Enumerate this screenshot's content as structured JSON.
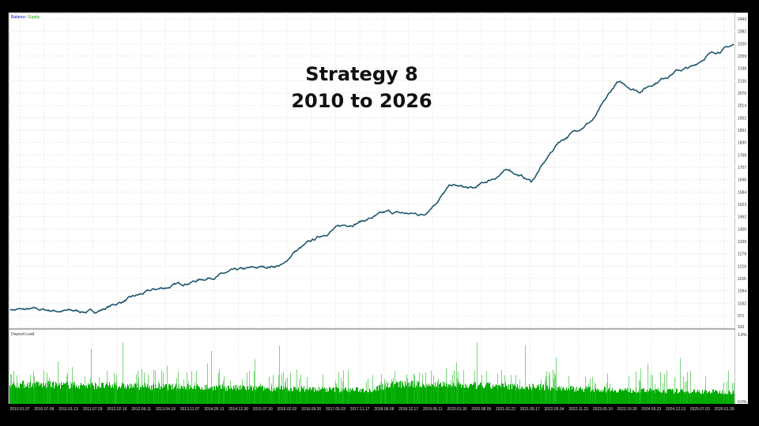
{
  "overlay": {
    "line1": "Strategy 8",
    "line2": "2010 to 2026"
  },
  "chart_data": [
    {
      "type": "line",
      "legend": {
        "items": [
          {
            "name": "Balance",
            "color": "#0000c0"
          },
          {
            "name": "Equity",
            "color": "#00b000"
          }
        ],
        "separator": " / ",
        "placement": "top-left"
      },
      "y_ticks": [
        2443,
        2382,
        2320,
        2259,
        2198,
        2136,
        2075,
        2014,
        1952,
        1891,
        1830,
        1768,
        1707,
        1646,
        1584,
        1523,
        1462,
        1400,
        1339,
        1278,
        1216,
        1155,
        1094,
        1032,
        971,
        910
      ],
      "ylim": [
        910,
        2443
      ],
      "x_ticks": [
        "2010.01.07",
        "2010.07.08",
        "2011.01.13",
        "2011.07.29",
        "2012.02.16",
        "2012.09.11",
        "2013.04.18",
        "2013.11.07",
        "2014.05.13",
        "2014.12.30",
        "2015.07.30",
        "2016.02.02",
        "2016.09.20",
        "2017.05.03",
        "2017.11.17",
        "2018.06.08",
        "2018.12.17",
        "2019.06.11",
        "2020.01.30",
        "2020.08.05",
        "2021.02.22",
        "2021.09.17",
        "2022.05.04",
        "2022.11.23",
        "2023.05.10",
        "2023.10.30",
        "2024.05.23",
        "2024.12.13",
        "2025.07.03",
        "2026.01.30"
      ],
      "grid": true,
      "series": [
        {
          "name": "Balance",
          "color": "#1f3f8f",
          "points": [
            [
              2010.0,
              1002
            ],
            [
              2011.9,
              990
            ],
            [
              2012.6,
              1050
            ],
            [
              2013.2,
              1096
            ],
            [
              2014.9,
              1186
            ],
            [
              2016.1,
              1225
            ],
            [
              2016.3,
              1284
            ],
            [
              2017.2,
              1402
            ],
            [
              2018.4,
              1480
            ],
            [
              2019.2,
              1472
            ],
            [
              2019.8,
              1617
            ],
            [
              2020.3,
              1597
            ],
            [
              2021.1,
              1695
            ],
            [
              2021.6,
              1636
            ],
            [
              2022.2,
              1832
            ],
            [
              2023.0,
              1950
            ],
            [
              2023.5,
              2126
            ],
            [
              2024.0,
              2087
            ],
            [
              2024.8,
              2185
            ],
            [
              2025.2,
              2204
            ],
            [
              2025.5,
              2263
            ],
            [
              2026.1,
              2314
            ]
          ]
        }
      ]
    },
    {
      "type": "bar",
      "title": "Deposit Load",
      "color": "#00aa00",
      "y_ticks": [
        "1.8%",
        "0.0%"
      ],
      "ylim": [
        0,
        1.8
      ],
      "base_level_percent": [
        [
          2010.0,
          0.5
        ],
        [
          2018.0,
          0.35
        ],
        [
          2018.5,
          0.5
        ],
        [
          2021.0,
          0.45
        ],
        [
          2023.5,
          0.35
        ],
        [
          2026.1,
          0.3
        ]
      ],
      "spike_max_percent": 1.6
    }
  ]
}
